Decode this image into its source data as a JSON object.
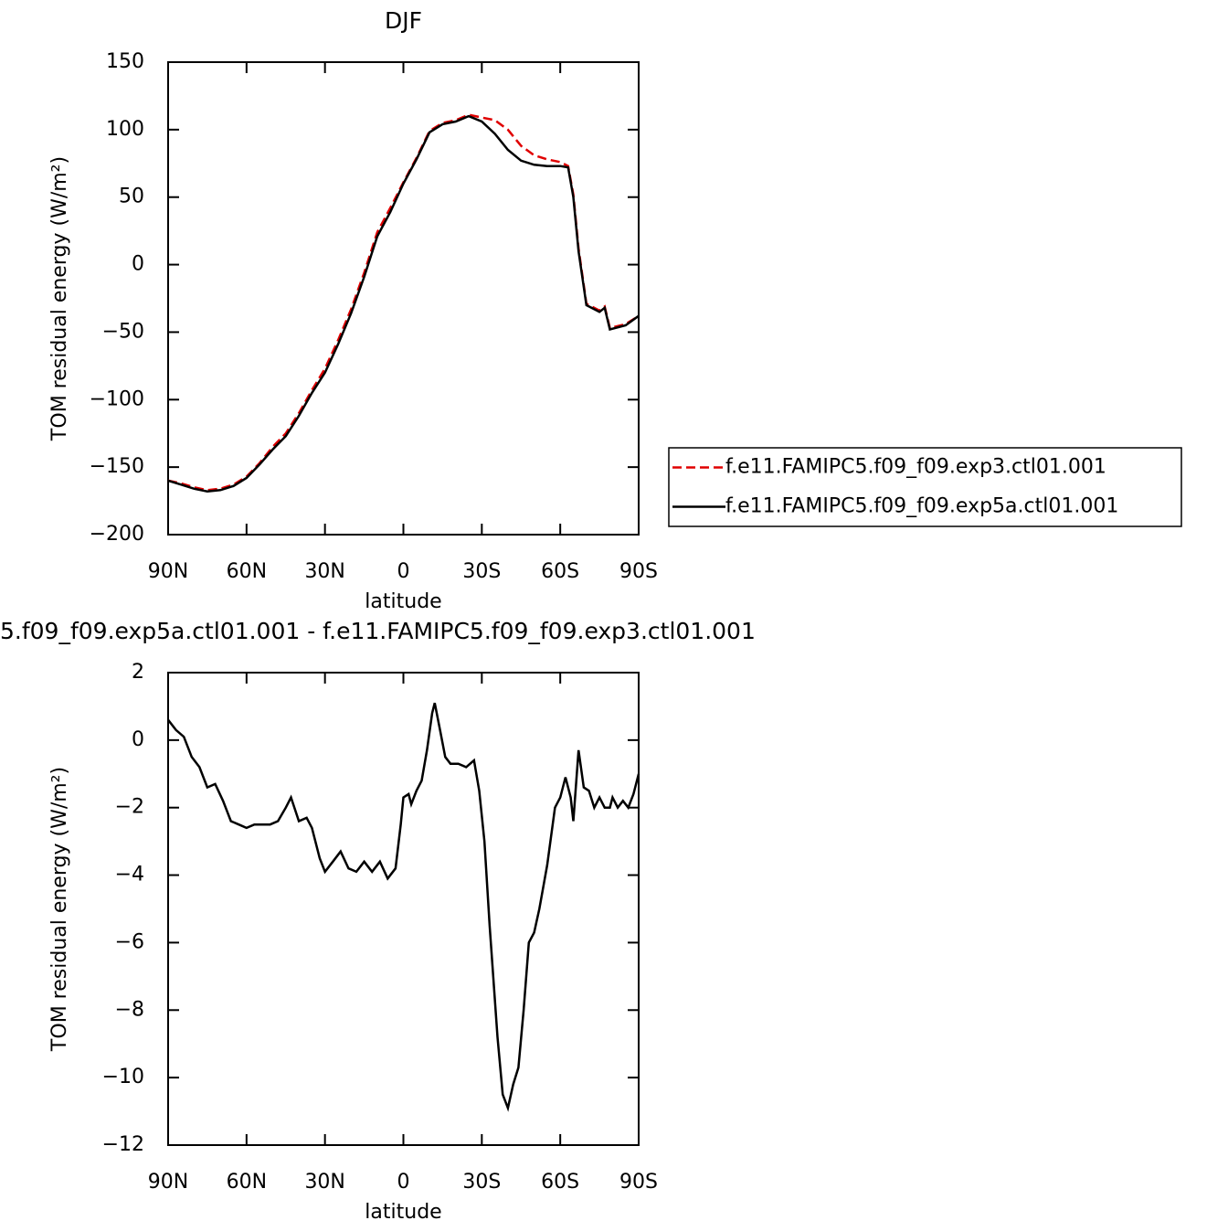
{
  "chart_data": [
    {
      "type": "line",
      "title": "DJF",
      "xlabel": "latitude",
      "ylabel": "TOM residual energy (W/m²)",
      "xlim": [
        90,
        -90
      ],
      "ylim": [
        -200,
        150
      ],
      "xticks": [
        {
          "value": 90,
          "label": "90N"
        },
        {
          "value": 60,
          "label": "60N"
        },
        {
          "value": 30,
          "label": "30N"
        },
        0,
        {
          "value": -30,
          "label": "30S"
        },
        {
          "value": -60,
          "label": "60S"
        },
        {
          "value": -90,
          "label": "90S"
        }
      ],
      "yticks": [
        -200,
        -150,
        -100,
        -50,
        0,
        50,
        100,
        150
      ],
      "legend": "outside-right",
      "x": [
        90,
        85,
        80,
        75,
        70,
        65,
        60,
        55,
        50,
        45,
        40,
        35,
        30,
        25,
        20,
        15,
        10,
        5,
        0,
        -5,
        -10,
        -15,
        -20,
        -25,
        -30,
        -35,
        -40,
        -45,
        -50,
        -55,
        -60,
        -63,
        -65,
        -67,
        -70,
        -75,
        -77,
        -79,
        -85,
        -90
      ],
      "series": [
        {
          "name": "f.e11.FAMIPC5.f09_f09.exp3.ctl01.001",
          "color": "#e00000",
          "dash": "dashed",
          "values": [
            -160,
            -162,
            -165,
            -167,
            -166,
            -163,
            -157,
            -147,
            -135,
            -125,
            -110,
            -93,
            -77,
            -56,
            -33,
            -6,
            24,
            42,
            61,
            79,
            99,
            105,
            107,
            111,
            109,
            107,
            100,
            88,
            81,
            78,
            76,
            73,
            52,
            12,
            -29,
            -34,
            -31,
            -47,
            -44,
            -38
          ]
        },
        {
          "name": "f.e11.FAMIPC5.f09_f09.exp5a.ctl01.001",
          "color": "#000000",
          "dash": "solid",
          "values": [
            -160,
            -163,
            -166,
            -168,
            -167,
            -164,
            -158,
            -148,
            -137,
            -127,
            -112,
            -95,
            -80,
            -59,
            -36,
            -9,
            21,
            39,
            60,
            78,
            98,
            104,
            106,
            110,
            106,
            97,
            85,
            77,
            74,
            73,
            73,
            72,
            50,
            10,
            -30,
            -35,
            -32,
            -48,
            -45,
            -38
          ]
        }
      ]
    },
    {
      "type": "line",
      "title": "5.f09_f09.exp5a.ctl01.001 - f.e11.FAMIPC5.f09_f09.exp3.ctl01.001",
      "xlabel": "latitude",
      "ylabel": "TOM residual energy (W/m²)",
      "xlim": [
        90,
        -90
      ],
      "ylim": [
        -12,
        2
      ],
      "xticks": [
        {
          "value": 90,
          "label": "90N"
        },
        {
          "value": 60,
          "label": "60N"
        },
        {
          "value": 30,
          "label": "30N"
        },
        0,
        {
          "value": -30,
          "label": "30S"
        },
        {
          "value": -60,
          "label": "60S"
        },
        {
          "value": -90,
          "label": "90S"
        }
      ],
      "yticks": [
        -12,
        -10,
        -8,
        -6,
        -4,
        -2,
        0,
        2
      ],
      "x": [
        90,
        87,
        84,
        81,
        78,
        75,
        72,
        69,
        66,
        63,
        60,
        57,
        54,
        51,
        48,
        45,
        43,
        40,
        37,
        35,
        32,
        30,
        27,
        24,
        21,
        18,
        15,
        12,
        9,
        6,
        3,
        1,
        0,
        -2,
        -3,
        -5,
        -7,
        -9,
        -11,
        -12,
        -14,
        -16,
        -18,
        -21,
        -24,
        -27,
        -29,
        -31,
        -33,
        -36,
        -38,
        -40,
        -42,
        -44,
        -46,
        -48,
        -50,
        -52,
        -55,
        -58,
        -60,
        -62,
        -64,
        -65,
        -67,
        -69,
        -71,
        -73,
        -75,
        -77,
        -79,
        -80,
        -82,
        -84,
        -86,
        -88,
        -90
      ],
      "series": [
        {
          "color": "#000000",
          "dash": "solid",
          "values": [
            0.6,
            0.3,
            0.1,
            -0.5,
            -0.8,
            -1.4,
            -1.3,
            -1.8,
            -2.4,
            -2.5,
            -2.6,
            -2.5,
            -2.5,
            -2.5,
            -2.4,
            -2.0,
            -1.7,
            -2.4,
            -2.3,
            -2.6,
            -3.5,
            -3.9,
            -3.6,
            -3.3,
            -3.8,
            -3.9,
            -3.6,
            -3.9,
            -3.6,
            -4.1,
            -3.8,
            -2.5,
            -1.7,
            -1.6,
            -1.9,
            -1.5,
            -1.2,
            -0.3,
            0.8,
            1.1,
            0.3,
            -0.5,
            -0.7,
            -0.7,
            -0.8,
            -0.6,
            -1.5,
            -3.0,
            -5.5,
            -8.8,
            -10.5,
            -10.9,
            -10.2,
            -9.7,
            -8.0,
            -6.0,
            -5.7,
            -5.0,
            -3.7,
            -2.0,
            -1.7,
            -1.1,
            -1.7,
            -2.4,
            -0.3,
            -1.4,
            -1.5,
            -2.0,
            -1.7,
            -2.0,
            -2.0,
            -1.7,
            -2.0,
            -1.8,
            -2.0,
            -1.6,
            -1.0
          ]
        }
      ]
    }
  ]
}
